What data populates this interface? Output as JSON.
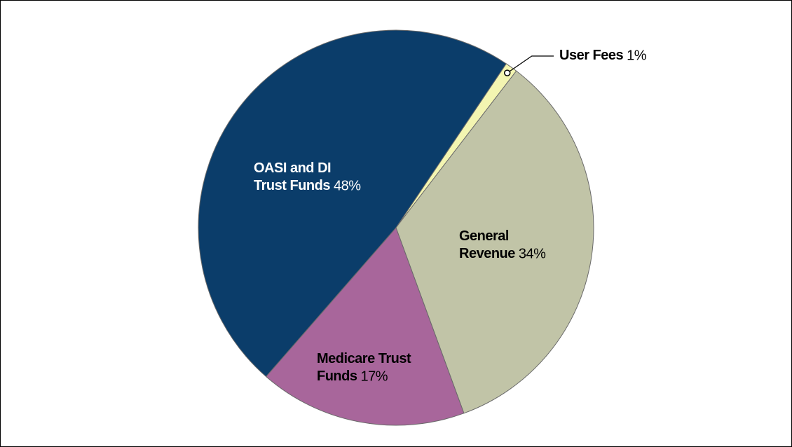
{
  "chart_data": {
    "type": "pie",
    "categories": [
      "User Fees",
      "General Revenue",
      "Medicare Trust Funds",
      "OASI and DI Trust Funds"
    ],
    "values": [
      1,
      34,
      17,
      48
    ],
    "value_labels": [
      "1%",
      "34%",
      "17%",
      "48%"
    ],
    "colors": [
      "#f3f5b1",
      "#c1c4a7",
      "#a8669b",
      "#0b3d6a"
    ]
  }
}
